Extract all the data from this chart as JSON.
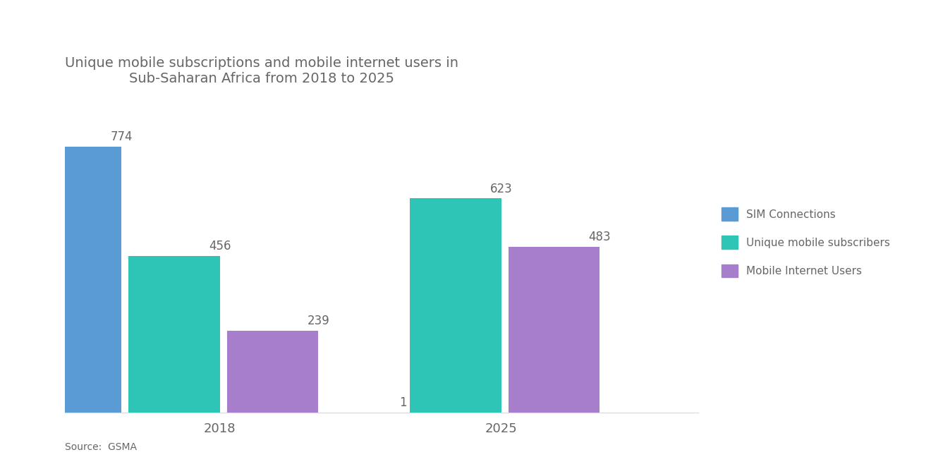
{
  "title": "Unique mobile subscriptions and mobile internet users in\nSub-Saharan Africa from 2018 to 2025",
  "title_fontsize": 14,
  "years": [
    "2018",
    "2025"
  ],
  "categories": [
    "SIM Connections",
    "Unique mobile subscribers",
    "Mobile Internet Users"
  ],
  "values": {
    "2018": [
      774,
      456,
      239
    ],
    "2025": [
      1,
      623,
      483
    ]
  },
  "colors": [
    "#5B9BD5",
    "#2EC4B6",
    "#A67ECC"
  ],
  "bar_width": 0.13,
  "source_text": "Source:  GSMA",
  "legend_labels": [
    "SIM Connections",
    "Unique mobile subscribers",
    "Mobile Internet Users"
  ],
  "background_color": "#ffffff",
  "text_color": "#666666",
  "value_label_fontsize": 12,
  "axis_label_fontsize": 13,
  "ylim": [
    0,
    900
  ]
}
